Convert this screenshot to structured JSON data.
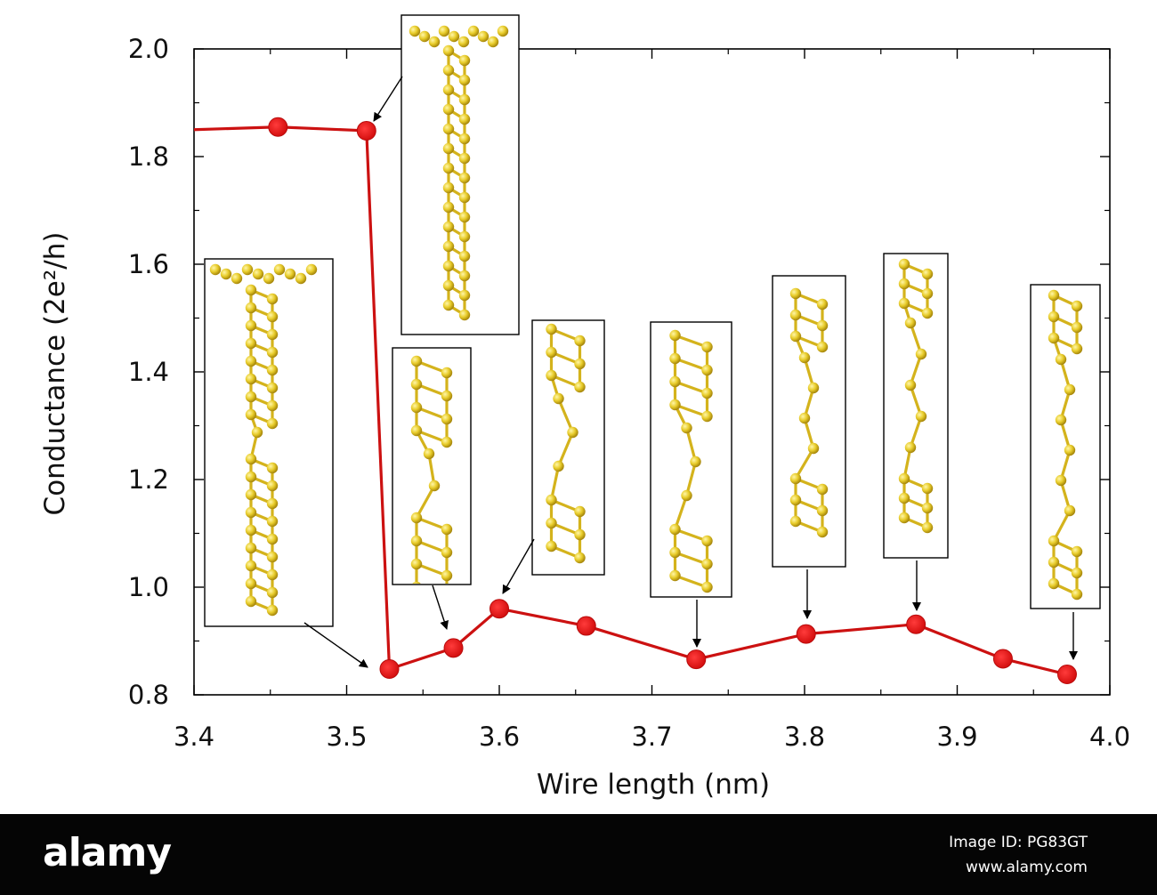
{
  "chart_data": {
    "type": "line",
    "xlabel": "Wire length (nm)",
    "ylabel": "Conductance (2e²/h)",
    "xlim": [
      3.4,
      4.0
    ],
    "ylim": [
      0.8,
      2.0
    ],
    "x_ticks": [
      "3.4",
      "3.5",
      "3.6",
      "3.7",
      "3.8",
      "3.9",
      "4.0"
    ],
    "y_ticks": [
      "0.8",
      "1.0",
      "1.2",
      "1.4",
      "1.6",
      "1.8",
      "2.0"
    ],
    "grid": false,
    "series": [
      {
        "color": "#cc1111",
        "line_start": [
          3.4,
          1.85
        ],
        "points": [
          {
            "x": 3.455,
            "y": 1.855
          },
          {
            "x": 3.513,
            "y": 1.848
          },
          {
            "x": 3.528,
            "y": 0.848
          },
          {
            "x": 3.57,
            "y": 0.887
          },
          {
            "x": 3.6,
            "y": 0.96
          },
          {
            "x": 3.657,
            "y": 0.928
          },
          {
            "x": 3.729,
            "y": 0.866
          },
          {
            "x": 3.801,
            "y": 0.913
          },
          {
            "x": 3.873,
            "y": 0.931
          },
          {
            "x": 3.93,
            "y": 0.867
          },
          {
            "x": 3.972,
            "y": 0.838
          }
        ]
      }
    ],
    "insets": [
      {
        "name": "wire-structure-inset",
        "points_to": 1,
        "structure": "intact nanowire"
      },
      {
        "name": "wire-structure-inset",
        "points_to": 2,
        "structure": "one single-atom link"
      },
      {
        "name": "wire-structure-inset",
        "points_to": 3,
        "structure": "two-atom chain"
      },
      {
        "name": "wire-structure-inset",
        "points_to": 4,
        "structure": "three-atom chain"
      },
      {
        "name": "wire-structure-inset",
        "points_to": 6,
        "structure": "chain with branch"
      },
      {
        "name": "wire-structure-inset",
        "points_to": 7,
        "structure": "four-atom chain"
      },
      {
        "name": "wire-structure-inset",
        "points_to": 8,
        "structure": "five-atom chain"
      },
      {
        "name": "wire-structure-inset",
        "points_to": 10,
        "structure": "long monatomic chain"
      }
    ]
  },
  "colors": {
    "line": "#cc1111",
    "atom": "#e8cc2a",
    "atom_highlight": "#fff6a8",
    "bond": "#d9b81e",
    "footer": "#050505"
  },
  "watermark": {
    "brand": "alamy",
    "image_id": "Image ID: PG83GT",
    "url": "www.alamy.com"
  }
}
